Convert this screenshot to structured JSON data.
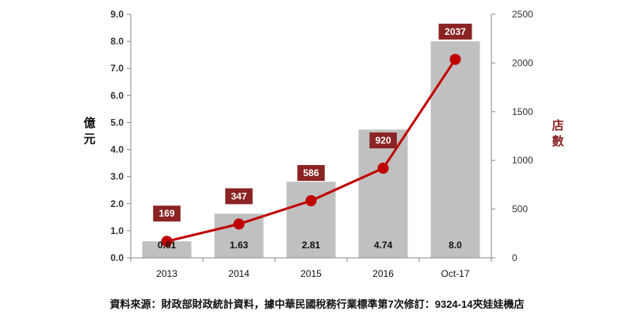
{
  "chart_data": {
    "type": "bar",
    "categories": [
      "2013",
      "2014",
      "2015",
      "2016",
      "Oct-17"
    ],
    "series": [
      {
        "name": "",
        "type": "bar",
        "axis": "left",
        "values": [
          0.61,
          1.63,
          2.81,
          4.74,
          8.0
        ],
        "labels": [
          "0.61",
          "1.63",
          "2.81",
          "4.74",
          "8.0"
        ]
      },
      {
        "name": "",
        "type": "line",
        "axis": "right",
        "values": [
          169,
          347,
          586,
          920,
          2037
        ],
        "labels": [
          "169",
          "347",
          "586",
          "920",
          "2037"
        ]
      }
    ],
    "ylabel_left": "億元",
    "ylabel_right": "店數",
    "ylim_left": [
      0,
      9
    ],
    "ylim_right": [
      0,
      2500
    ],
    "yticks_left": [
      "0.0",
      "1.0",
      "2.0",
      "3.0",
      "4.0",
      "5.0",
      "6.0",
      "7.0",
      "8.0",
      "9.0"
    ],
    "yticks_right": [
      "0",
      "500",
      "1000",
      "1500",
      "2000",
      "2500"
    ],
    "grid": false,
    "legend": "none",
    "colors": {
      "bar": "#c0c0c0",
      "line": "#c00000",
      "label_box": "#8b2323",
      "right_axis_title": "#8b2323"
    }
  },
  "footer": {
    "source": "資料來源：財政部財政統計資料，據中華民國稅務行業標準第7次修訂：9324-14夾娃娃機店"
  }
}
